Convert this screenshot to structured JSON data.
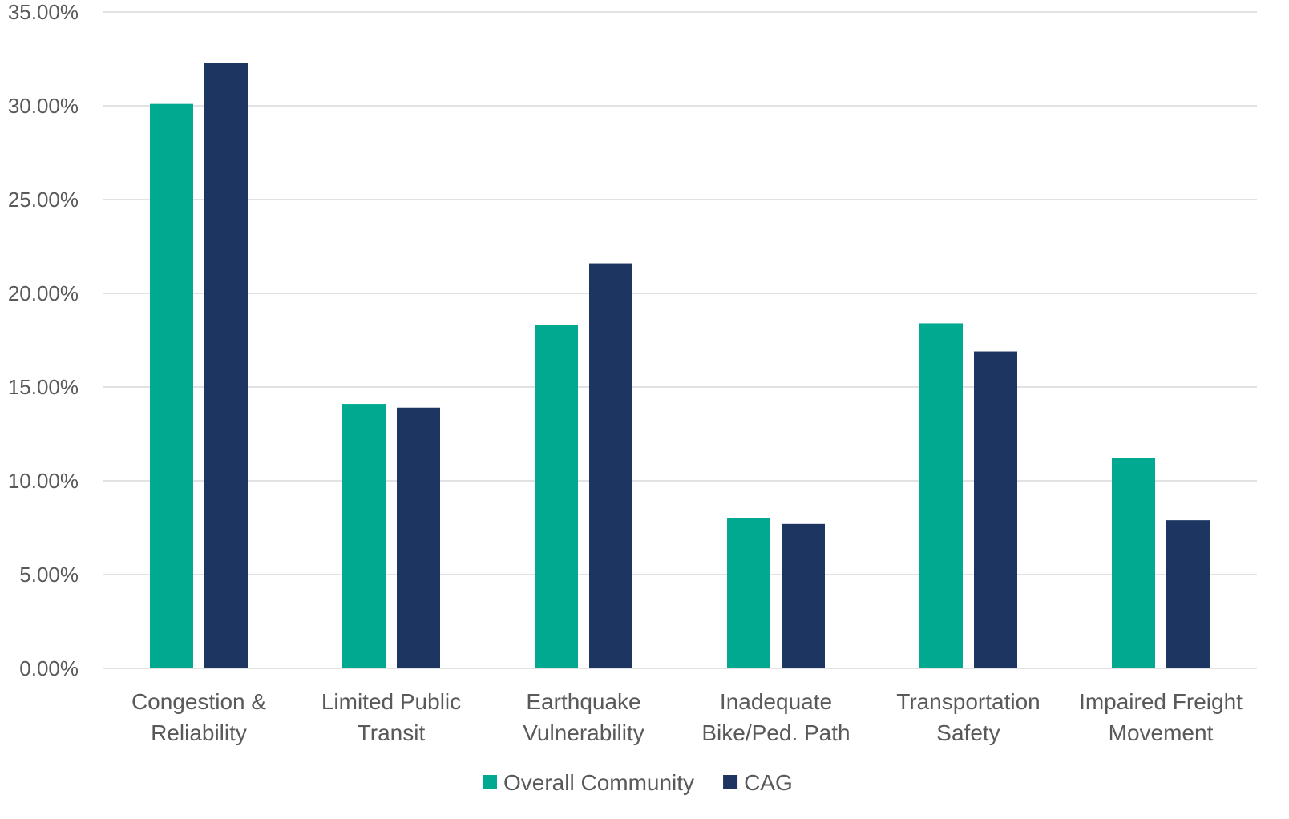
{
  "chart_data": {
    "type": "bar",
    "title": "",
    "xlabel": "",
    "ylabel": "",
    "categories": [
      [
        "Congestion &",
        "Reliability"
      ],
      [
        "Limited Public",
        "Transit"
      ],
      [
        "Earthquake",
        "Vulnerability"
      ],
      [
        "Inadequate",
        "Bike/Ped. Path"
      ],
      [
        "Transportation",
        "Safety"
      ],
      [
        "Impaired Freight",
        "Movement"
      ]
    ],
    "series": [
      {
        "name": "Overall Community",
        "color": "#00A98F",
        "values": [
          30.1,
          14.1,
          18.3,
          8.0,
          18.4,
          11.2
        ]
      },
      {
        "name": "CAG",
        "color": "#1C3661",
        "values": [
          32.3,
          13.9,
          21.6,
          7.7,
          16.9,
          7.9
        ]
      }
    ],
    "ylim": [
      0,
      35
    ],
    "yticks": [
      "0.00%",
      "5.00%",
      "10.00%",
      "15.00%",
      "20.00%",
      "25.00%",
      "30.00%",
      "35.00%"
    ],
    "grid": true,
    "legend_position": "bottom"
  }
}
